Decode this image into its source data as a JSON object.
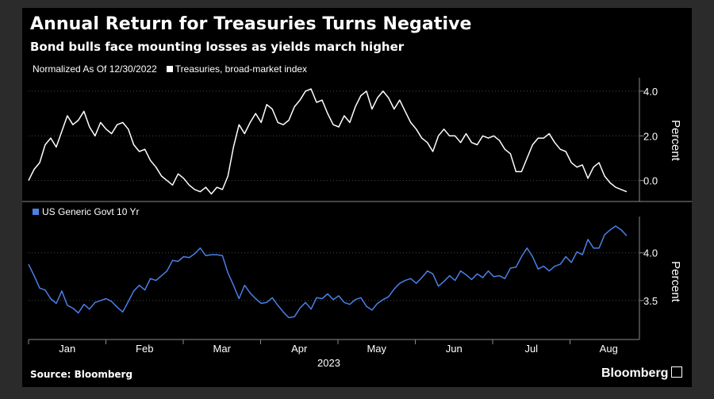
{
  "header": {
    "title": "Annual Return for Treasuries Turns Negative",
    "subtitle": "Bond bulls face mounting losses as yields march higher"
  },
  "footer": {
    "source": "Source: Bloomberg",
    "brand": "Bloomberg"
  },
  "colors": {
    "series1": "#ffffff",
    "series2": "#4a7fe8",
    "background": "#000000"
  },
  "chart_data": [
    {
      "type": "line",
      "title": "",
      "note": "Normalized As Of 12/30/2022",
      "ylabel": "Percent",
      "ylim": [
        -0.9,
        4.6
      ],
      "yticks": [
        "4.0",
        "2.0",
        "0.0"
      ],
      "series": [
        {
          "name": "Treasuries, broad-market index",
          "values": [
            0.0,
            0.5,
            0.8,
            1.6,
            1.9,
            1.5,
            2.2,
            2.9,
            2.5,
            2.7,
            3.1,
            2.4,
            2.0,
            2.6,
            2.3,
            2.1,
            2.5,
            2.6,
            2.3,
            1.6,
            1.3,
            1.4,
            0.9,
            0.6,
            0.2,
            0.0,
            -0.2,
            0.3,
            0.1,
            -0.2,
            -0.4,
            -0.5,
            -0.3,
            -0.6,
            -0.3,
            -0.4,
            0.2,
            1.5,
            2.5,
            2.1,
            2.6,
            3.0,
            2.6,
            3.4,
            3.2,
            2.6,
            2.5,
            2.7,
            3.3,
            3.6,
            4.0,
            4.1,
            3.5,
            3.6,
            3.0,
            2.5,
            2.4,
            2.9,
            2.6,
            3.3,
            3.8,
            4.0,
            3.2,
            3.7,
            4.0,
            3.7,
            3.2,
            3.6,
            3.1,
            2.6,
            2.3,
            1.9,
            1.7,
            1.3,
            2.0,
            2.3,
            2.0,
            2.0,
            1.7,
            2.1,
            1.7,
            1.6,
            2.0,
            1.9,
            2.0,
            1.8,
            1.4,
            1.2,
            0.4,
            0.4,
            1.0,
            1.6,
            1.9,
            1.9,
            2.1,
            1.7,
            1.4,
            1.3,
            0.8,
            0.6,
            0.7,
            0.1,
            0.6,
            0.8,
            0.2,
            -0.1,
            -0.3,
            -0.4,
            -0.5
          ]
        }
      ]
    },
    {
      "type": "line",
      "title": "",
      "ylabel": "Percent",
      "ylim": [
        3.1,
        4.38
      ],
      "yticks": [
        "4.0",
        "3.5"
      ],
      "series": [
        {
          "name": "US Generic Govt 10 Yr",
          "values": [
            3.88,
            3.76,
            3.63,
            3.61,
            3.52,
            3.47,
            3.6,
            3.45,
            3.42,
            3.37,
            3.46,
            3.41,
            3.48,
            3.5,
            3.52,
            3.49,
            3.43,
            3.38,
            3.49,
            3.6,
            3.66,
            3.61,
            3.73,
            3.71,
            3.76,
            3.81,
            3.92,
            3.91,
            3.96,
            3.95,
            3.99,
            4.05,
            3.97,
            3.98,
            3.98,
            3.97,
            3.79,
            3.66,
            3.52,
            3.66,
            3.58,
            3.52,
            3.47,
            3.48,
            3.53,
            3.45,
            3.38,
            3.32,
            3.33,
            3.42,
            3.48,
            3.41,
            3.53,
            3.52,
            3.57,
            3.51,
            3.55,
            3.48,
            3.46,
            3.51,
            3.53,
            3.44,
            3.4,
            3.47,
            3.51,
            3.54,
            3.62,
            3.68,
            3.71,
            3.73,
            3.68,
            3.74,
            3.81,
            3.78,
            3.65,
            3.7,
            3.76,
            3.71,
            3.81,
            3.77,
            3.72,
            3.78,
            3.74,
            3.81,
            3.75,
            3.76,
            3.73,
            3.84,
            3.85,
            3.96,
            4.05,
            3.96,
            3.83,
            3.86,
            3.81,
            3.86,
            3.88,
            3.96,
            3.9,
            4.01,
            3.98,
            4.14,
            4.05,
            4.05,
            4.19,
            4.24,
            4.28,
            4.24,
            4.18
          ]
        }
      ],
      "x_axis": {
        "tick_labels": [
          "Jan",
          "Feb",
          "Mar",
          "Apr",
          "May",
          "Jun",
          "Jul",
          "Aug"
        ],
        "year_label": "2023"
      }
    }
  ]
}
